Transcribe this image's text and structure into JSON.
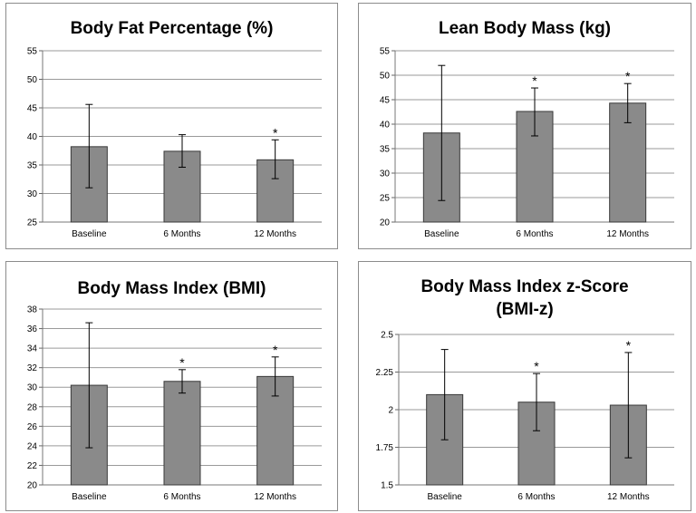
{
  "chart_data": [
    {
      "type": "bar",
      "title": "Body Fat Percentage (%)",
      "title_lines": [
        "Body Fat Percentage (%)"
      ],
      "categories": [
        "Baseline",
        "6 Months",
        "12 Months"
      ],
      "values": [
        38.2,
        37.4,
        35.9
      ],
      "error_high": [
        45.6,
        40.3,
        39.4
      ],
      "error_low": [
        31.0,
        34.6,
        32.6
      ],
      "significance": [
        "",
        "",
        "*"
      ],
      "ylim": [
        25,
        55
      ],
      "yticks": [
        "25",
        "30",
        "35",
        "40",
        "45",
        "50",
        "55"
      ],
      "grid": true,
      "bar_color": "#8a8a8a"
    },
    {
      "type": "bar",
      "title": "Lean Body Mass (kg)",
      "title_lines": [
        "Lean Body Mass (kg)"
      ],
      "categories": [
        "Baseline",
        "6 Months",
        "12 Months"
      ],
      "values": [
        38.2,
        42.6,
        44.3
      ],
      "error_high": [
        52.0,
        47.4,
        48.3
      ],
      "error_low": [
        24.4,
        37.6,
        40.3
      ],
      "significance": [
        "",
        "*",
        "*"
      ],
      "ylim": [
        20,
        55
      ],
      "yticks": [
        "20",
        "25",
        "30",
        "35",
        "40",
        "45",
        "50",
        "55"
      ],
      "grid": true,
      "bar_color": "#8a8a8a"
    },
    {
      "type": "bar",
      "title": "Body Mass Index (BMI)",
      "title_lines": [
        "Body Mass Index (BMI)"
      ],
      "categories": [
        "Baseline",
        "6 Months",
        "12 Months"
      ],
      "values": [
        30.2,
        30.6,
        31.1
      ],
      "error_high": [
        36.6,
        31.8,
        33.1
      ],
      "error_low": [
        23.8,
        29.4,
        29.1
      ],
      "significance": [
        "",
        "*",
        "*"
      ],
      "ylim": [
        20,
        38
      ],
      "yticks": [
        "20",
        "22",
        "24",
        "26",
        "28",
        "30",
        "32",
        "34",
        "36",
        "38"
      ],
      "grid": true,
      "bar_color": "#8a8a8a"
    },
    {
      "type": "bar",
      "title": "Body Mass Index z-Score (BMI-z)",
      "title_lines": [
        "Body Mass Index z-Score",
        "(BMI-z)"
      ],
      "categories": [
        "Baseline",
        "6 Months",
        "12 Months"
      ],
      "values": [
        2.1,
        2.05,
        2.03
      ],
      "error_high": [
        2.4,
        2.24,
        2.38
      ],
      "error_low": [
        1.8,
        1.86,
        1.68
      ],
      "significance": [
        "",
        "*",
        "*"
      ],
      "ylim": [
        1.5,
        2.5
      ],
      "yticks": [
        "1.5",
        "1.75",
        "2",
        "2.25",
        "2.5"
      ],
      "grid": true,
      "bar_color": "#8a8a8a"
    }
  ]
}
